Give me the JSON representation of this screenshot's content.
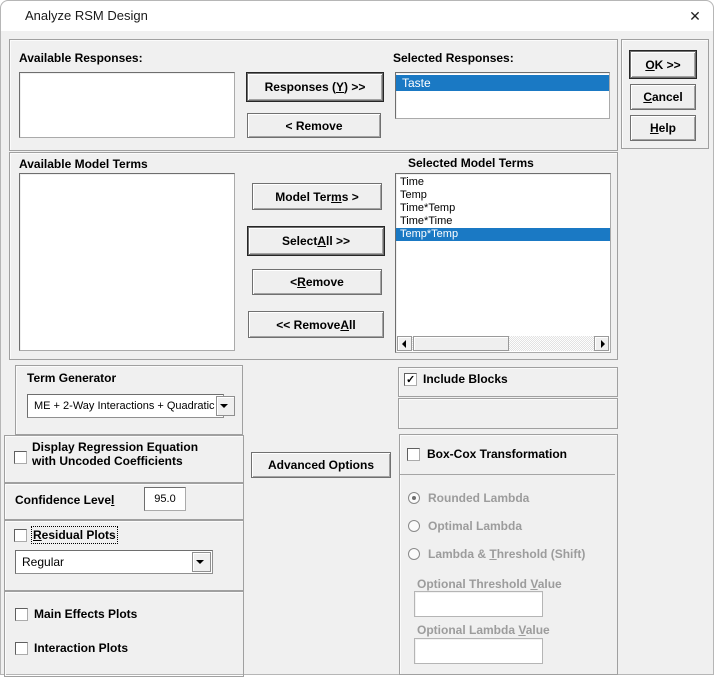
{
  "window": {
    "title": "Analyze RSM Design",
    "close_icon": "✕"
  },
  "colors": {
    "selection": "#1a79c4",
    "disabled_text": "#9c9c9c"
  },
  "responses": {
    "available_label": "Available Responses:",
    "selected_label": "Selected Responses:",
    "add_button": "Responses (&Y) >>",
    "remove_button": "< Remove",
    "available_items": [],
    "selected_items": [
      "Taste"
    ],
    "selected_index": 0
  },
  "actions": {
    "ok": "&OK >>",
    "cancel": "&Cancel",
    "help": "&Help"
  },
  "model_terms": {
    "available_label": "Available Model Terms",
    "selected_label": "Selected Model Terms",
    "add_button": "Model Ter&ms >",
    "select_all_button": "Select &All >>",
    "remove_button": "< &Remove",
    "remove_all_button": "<< Remove &All",
    "available_items": [],
    "selected_items": [
      "Time",
      "Temp",
      "Time*Temp",
      "Time*Time",
      "Temp*Temp"
    ],
    "selected_index": 4
  },
  "term_generator": {
    "label": "Term Generator",
    "value": "ME + 2-Way Interactions + Quadratic"
  },
  "include_blocks": {
    "label": "Include Blocks",
    "checked": true
  },
  "display_regression": {
    "line1": "Display Regression Equation",
    "line2": "with Uncoded Coefficients",
    "checked": false
  },
  "confidence": {
    "label": "Confidence Leve&l",
    "value": "95.0"
  },
  "residual_plots": {
    "label": "&Residual Plots",
    "checked": false,
    "dropdown_value": "Regular"
  },
  "advanced_options_button": "Advanced Options",
  "box_cox": {
    "label": "Box-Cox Transformation",
    "checked": false,
    "rounded_lambda": {
      "label": "Rounded Lambda",
      "selected": true
    },
    "optimal_lambda": {
      "label": "Optimal Lambda",
      "selected": false
    },
    "lambda_threshold": {
      "label": "Lambda && &Threshold (Shift)",
      "selected": false
    },
    "threshold_label": "Optional Threshold &Value",
    "threshold_value": "",
    "lambda_label": "Optional Lambda &Value",
    "lambda_value": ""
  },
  "plots": {
    "main_effects_label": "Main Effects Plots",
    "main_effects_checked": false,
    "interaction_label": "Interaction Plots",
    "interaction_checked": false
  }
}
